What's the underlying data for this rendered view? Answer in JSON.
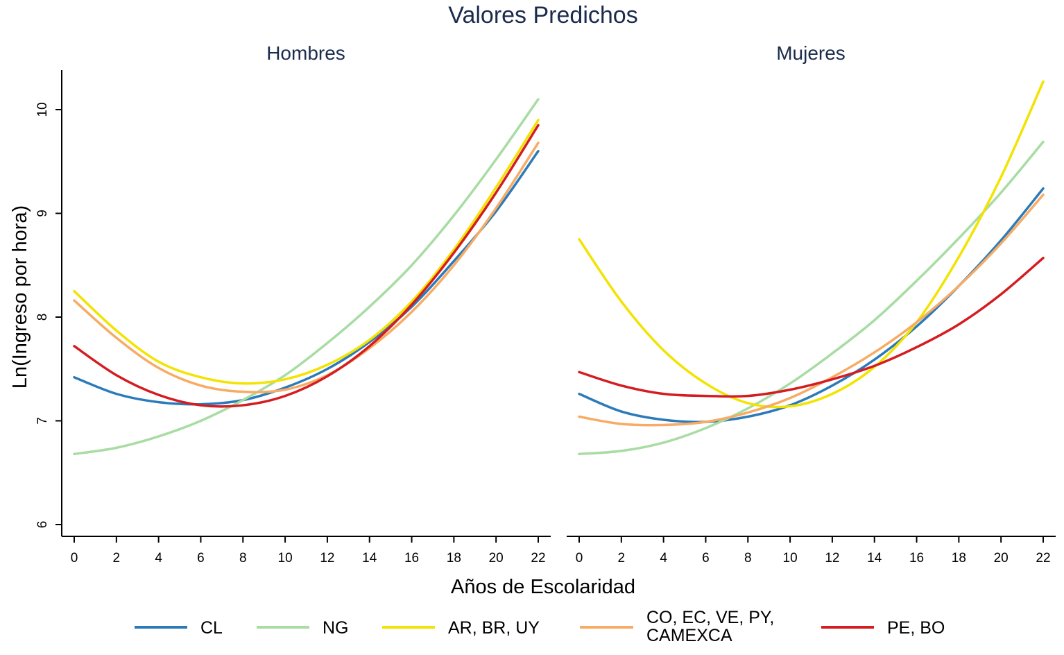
{
  "chart_data": {
    "type": "line",
    "title": "Valores Predichos",
    "xlabel": "Años de Escolaridad",
    "ylabel": "Ln(Ingreso por hora)",
    "xlim": [
      0,
      22
    ],
    "ylim": [
      6,
      10
    ],
    "x_ticks": [
      0,
      2,
      4,
      6,
      8,
      10,
      12,
      14,
      16,
      18,
      20,
      22
    ],
    "y_ticks": [
      6,
      7,
      8,
      9,
      10
    ],
    "grid": false,
    "legend_position": "bottom",
    "series_styles": [
      {
        "name": "CL",
        "color": "#2b7bba"
      },
      {
        "name": "NG",
        "color": "#a8dca3"
      },
      {
        "name": "AR, BR, UY",
        "color": "#f2e300"
      },
      {
        "name": "CO, EC, VE, PY, CAMEXCA",
        "label_lines": [
          "CO, EC, VE, PY,",
          "CAMEXCA"
        ],
        "color": "#f7ab64"
      },
      {
        "name": "PE, BO",
        "color": "#d41c21"
      }
    ],
    "panels": [
      {
        "title": "Hombres",
        "x": [
          0,
          2,
          4,
          6,
          8,
          10,
          12,
          14,
          16,
          18,
          20,
          22
        ],
        "series": [
          {
            "name": "CL",
            "values": [
              7.42,
              7.26,
              7.18,
              7.16,
              7.2,
              7.32,
              7.5,
              7.76,
              8.1,
              8.54,
              9.02,
              9.6
            ]
          },
          {
            "name": "NG",
            "values": [
              6.68,
              6.74,
              6.85,
              7.0,
              7.2,
              7.44,
              7.75,
              8.1,
              8.5,
              8.98,
              9.52,
              10.1
            ]
          },
          {
            "name": "AR, BR, UY",
            "values": [
              8.25,
              7.87,
              7.57,
              7.42,
              7.36,
              7.4,
              7.54,
              7.78,
              8.15,
              8.65,
              9.25,
              9.9
            ]
          },
          {
            "name": "CO, EC, VE, PY, CAMEXCA",
            "values": [
              8.16,
              7.8,
              7.51,
              7.34,
              7.28,
              7.3,
              7.44,
              7.7,
              8.05,
              8.5,
              9.05,
              9.68
            ]
          },
          {
            "name": "PE, BO",
            "values": [
              7.72,
              7.44,
              7.25,
              7.15,
              7.15,
              7.24,
              7.43,
              7.72,
              8.12,
              8.62,
              9.2,
              9.85
            ]
          }
        ]
      },
      {
        "title": "Mujeres",
        "x": [
          0,
          2,
          4,
          6,
          8,
          10,
          12,
          14,
          16,
          18,
          20,
          22
        ],
        "series": [
          {
            "name": "CL",
            "values": [
              7.26,
              7.09,
              7.01,
              6.99,
              7.04,
              7.15,
              7.34,
              7.59,
              7.91,
              8.3,
              8.74,
              9.24
            ]
          },
          {
            "name": "NG",
            "values": [
              6.68,
              6.71,
              6.79,
              6.93,
              7.12,
              7.36,
              7.65,
              7.97,
              8.35,
              8.76,
              9.2,
              9.69
            ]
          },
          {
            "name": "AR, BR, UY",
            "values": [
              8.75,
              8.15,
              7.68,
              7.36,
              7.17,
              7.14,
              7.26,
              7.52,
              7.95,
              8.58,
              9.35,
              10.27
            ]
          },
          {
            "name": "CO, EC, VE, PY, CAMEXCA",
            "values": [
              7.04,
              6.97,
              6.96,
              6.99,
              7.08,
              7.22,
              7.42,
              7.66,
              7.95,
              8.3,
              8.71,
              9.18
            ]
          },
          {
            "name": "PE, BO",
            "values": [
              7.47,
              7.34,
              7.26,
              7.24,
              7.24,
              7.3,
              7.4,
              7.53,
              7.71,
              7.93,
              8.22,
              8.57
            ]
          }
        ]
      }
    ]
  }
}
